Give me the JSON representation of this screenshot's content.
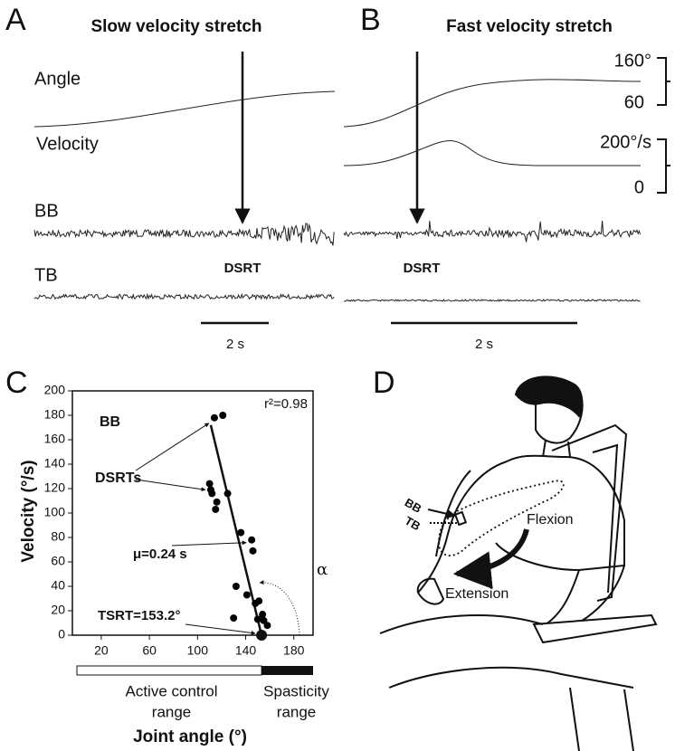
{
  "panel_a": {
    "label": "A",
    "title": "Slow velocity stretch",
    "traces": [
      "Angle",
      "Velocity",
      "BB",
      "TB"
    ],
    "marker": "DSRT",
    "scale_bar": "2 s"
  },
  "panel_b": {
    "label": "B",
    "title": "Fast velocity stretch",
    "marker": "DSRT",
    "scale_bar": "2 s",
    "angle_scale": [
      "160°",
      "60"
    ],
    "velocity_scale": [
      "200°/s",
      "0"
    ]
  },
  "chart_data": {
    "type": "scatter",
    "panel_label": "C",
    "series_label": "BB",
    "fit_label": "r²=0.98",
    "x": [
      114,
      121,
      110,
      111,
      112,
      116,
      115,
      125,
      136,
      145,
      146,
      132,
      141,
      151,
      148,
      154,
      155,
      150,
      158,
      130
    ],
    "y": [
      178,
      180,
      124,
      119,
      116,
      109,
      103,
      116,
      84,
      78,
      69,
      40,
      33,
      28,
      26,
      17,
      12,
      13,
      8,
      14
    ],
    "color": "#000000",
    "fit_line": {
      "x": [
        111,
        153.2
      ],
      "y": [
        172,
        0
      ]
    },
    "tsrt": 153.2,
    "xlim": [
      -4,
      196
    ],
    "ylim": [
      0,
      200
    ],
    "xticks": [
      20,
      60,
      100,
      140,
      180
    ],
    "yticks": [
      0,
      20,
      40,
      60,
      80,
      100,
      120,
      140,
      160,
      180,
      200
    ],
    "xlabel": "Joint angle (°)",
    "ylabel": "Velocity (°/s)",
    "annotations": {
      "dsrts": "DSRTs",
      "mu": "μ=0.24 s",
      "tsrt": "TSRT=153.2°",
      "alpha": "α"
    },
    "ranges": [
      {
        "lines": [
          "Active control",
          "range"
        ]
      },
      {
        "lines": [
          "Spasticity",
          "range"
        ]
      }
    ]
  },
  "panel_d": {
    "label": "D",
    "labels": [
      "BB",
      "TB",
      "Flexion",
      "Extension"
    ]
  }
}
